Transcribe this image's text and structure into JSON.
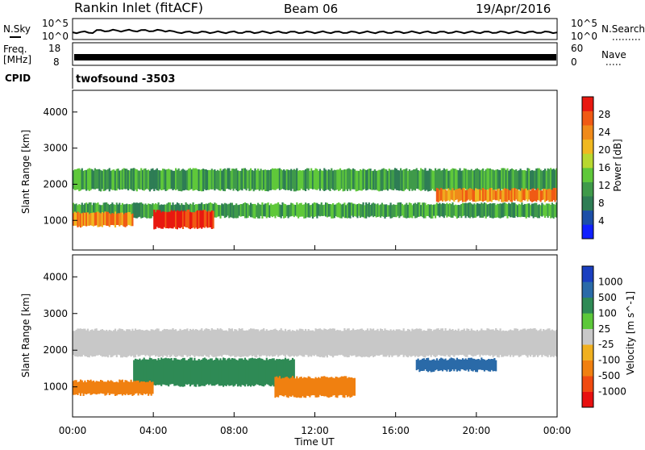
{
  "header": {
    "station": "Rankin Inlet (fitACF)",
    "beam": "Beam 06",
    "date": "19/Apr/2016"
  },
  "noise_panel": {
    "left_label": "N.Sky",
    "right_label": "N.Search",
    "left_ticks": [
      "10^5",
      "10^0"
    ],
    "right_ticks": [
      "10^5",
      "10^0"
    ]
  },
  "freq_panel": {
    "left_label_line1": "Freq.",
    "left_label_line2": "[MHz]",
    "left_ticks": [
      "18",
      "8"
    ],
    "right_label": "Nave",
    "right_ticks": [
      "60",
      "0"
    ]
  },
  "cpid": {
    "label": "CPID",
    "value": "twofsound -3503"
  },
  "time_axis": {
    "label": "Time UT",
    "ticks": [
      "00:00",
      "04:00",
      "08:00",
      "12:00",
      "16:00",
      "20:00",
      "00:00"
    ]
  },
  "chart_data": [
    {
      "type": "heatmap",
      "parameter": "Power",
      "ylabel": "Slant Range [km]",
      "yticks": [
        1000,
        2000,
        3000,
        4000
      ],
      "ylim": [
        180,
        4600
      ],
      "x_hours": [
        0,
        24
      ],
      "colorbar": {
        "label": "Power [dB]",
        "ticks": [
          "4",
          "8",
          "12",
          "16",
          "20",
          "24",
          "28"
        ],
        "colors": [
          "#1020ff",
          "#1c4fa8",
          "#2e7d55",
          "#3f9a4a",
          "#5fc83a",
          "#b8d830",
          "#f0b820",
          "#f08a1a",
          "#f05a14",
          "#e81810"
        ]
      },
      "bands": [
        {
          "t0": 0,
          "t1": 24,
          "r0": 1050,
          "r1": 1500,
          "value": 10
        },
        {
          "t0": 0,
          "t1": 24,
          "r0": 1800,
          "r1": 2450,
          "value": 8
        },
        {
          "t0": 4,
          "t1": 7,
          "r0": 750,
          "r1": 1300,
          "value": 28
        },
        {
          "t0": 0,
          "t1": 3,
          "r0": 800,
          "r1": 1250,
          "value": 20
        },
        {
          "t0": 18,
          "t1": 24,
          "r0": 1500,
          "r1": 1900,
          "value": 22
        }
      ]
    },
    {
      "type": "heatmap",
      "parameter": "Velocity",
      "ylabel": "Slant Range [km]",
      "yticks": [
        1000,
        2000,
        3000,
        4000
      ],
      "ylim": [
        180,
        4600
      ],
      "x_hours": [
        0,
        24
      ],
      "colorbar": {
        "label": "Velocity [m s^-1]",
        "ticks": [
          "1000",
          "500",
          "100",
          "25",
          "-25",
          "-100",
          "-500",
          "-1000"
        ],
        "colors": [
          "#1a3fc0",
          "#2a6aa8",
          "#2e8a55",
          "#5cc83a",
          "#c8c8c8",
          "#f0b020",
          "#f08010",
          "#f04a10",
          "#e81010"
        ]
      },
      "bands": [
        {
          "t0": 0,
          "t1": 24,
          "r0": 1800,
          "r1": 2600,
          "value": 0
        },
        {
          "t0": 3,
          "t1": 11,
          "r0": 1000,
          "r1": 1800,
          "value": 200
        },
        {
          "t0": 0,
          "t1": 4,
          "r0": 750,
          "r1": 1200,
          "value": -300
        },
        {
          "t0": 10,
          "t1": 14,
          "r0": 700,
          "r1": 1300,
          "value": -200
        },
        {
          "t0": 17,
          "t1": 21,
          "r0": 1400,
          "r1": 1800,
          "value": 600
        }
      ]
    }
  ]
}
